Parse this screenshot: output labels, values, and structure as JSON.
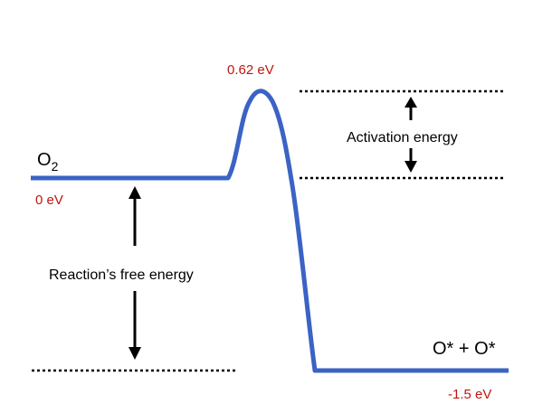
{
  "colors": {
    "curve": "#3a63c4",
    "energy_label": "#c0150e",
    "text": "#000000",
    "reference_lines": "#000000"
  },
  "reactant": {
    "species_main": "O",
    "species_subscript": "2",
    "energy_label": "0 eV"
  },
  "transition_state": {
    "energy_label": "0.62 eV"
  },
  "product": {
    "species": "O* + O*",
    "energy_label": "-1.5 eV"
  },
  "annotations": {
    "activation_energy": "Activation energy",
    "reaction_free_energy": "Reaction’s free energy"
  }
}
